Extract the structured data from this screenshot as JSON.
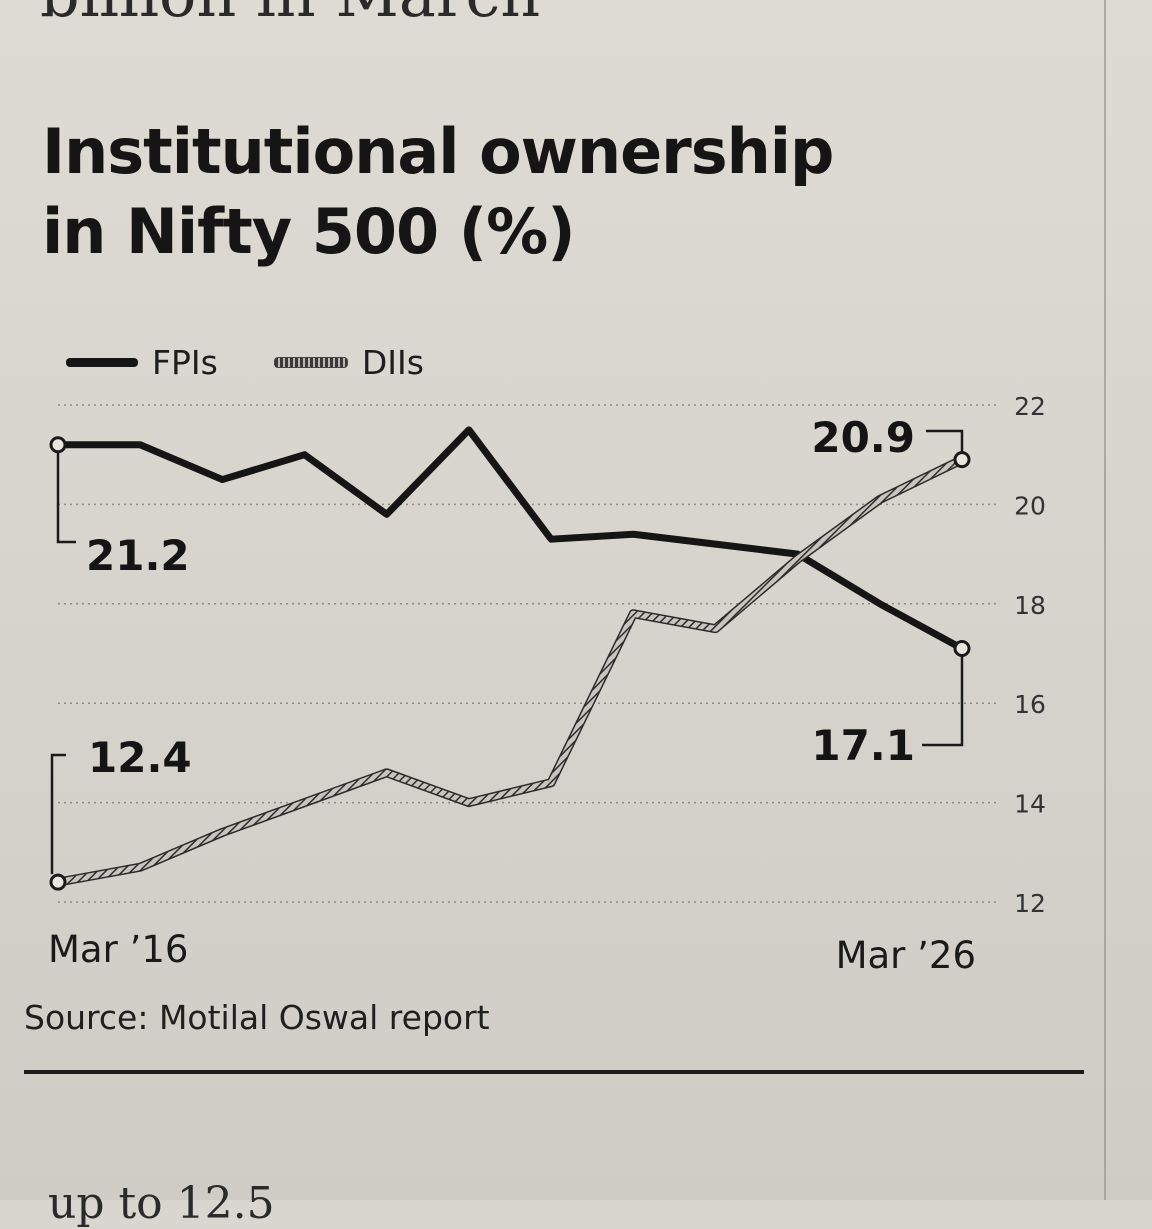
{
  "page": {
    "headline_fragment": "billion in March",
    "next_text_fragment": "up to 12.5"
  },
  "chart_data": {
    "type": "line",
    "title_lines": [
      "Institutional ownership",
      "in Nifty 500 (%)"
    ],
    "source": "Source: Motilal Oswal report",
    "x_start_label": "Mar ’16",
    "x_end_label": "Mar ’26",
    "x_index": [
      0,
      1,
      2,
      3,
      4,
      5,
      6,
      7,
      8,
      9,
      10,
      11
    ],
    "y_axis_side": "right",
    "ylim": [
      12,
      22
    ],
    "yticks": [
      12,
      14,
      16,
      18,
      20,
      22
    ],
    "grid": "horizontal-dotted",
    "legend_placement": "top-left",
    "series": [
      {
        "name": "FPIs",
        "style": "solid-dark",
        "color": "#151515",
        "values": [
          21.2,
          21.2,
          20.5,
          21.0,
          19.8,
          21.5,
          19.3,
          19.4,
          19.2,
          19.0,
          18.0,
          17.1
        ],
        "start_label": "21.2",
        "end_label": "17.1"
      },
      {
        "name": "DIIs",
        "style": "hatched",
        "color": "#8a8781",
        "values": [
          12.4,
          12.7,
          13.4,
          14.0,
          14.6,
          14.0,
          14.4,
          17.8,
          17.5,
          18.9,
          20.1,
          20.9
        ],
        "start_label": "12.4",
        "end_label": "20.9"
      }
    ]
  }
}
